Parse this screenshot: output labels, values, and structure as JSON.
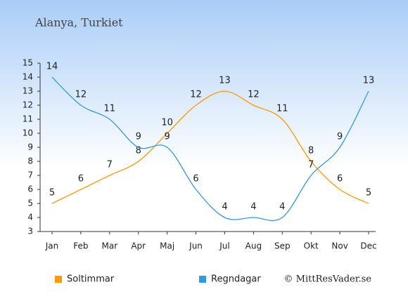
{
  "chart_data": {
    "type": "line",
    "title": "Alanya, Turkiet",
    "categories": [
      "Jan",
      "Feb",
      "Mar",
      "Apr",
      "Maj",
      "Jun",
      "Jul",
      "Aug",
      "Sep",
      "Okt",
      "Nov",
      "Dec"
    ],
    "series": [
      {
        "name": "Soltimmar",
        "color": "#ff9900",
        "values": [
          5,
          6,
          7,
          8,
          10,
          12,
          13,
          12,
          11,
          8,
          6,
          5
        ]
      },
      {
        "name": "Regndagar",
        "color": "#3399e6",
        "values": [
          14,
          12,
          11,
          9,
          9,
          6,
          4,
          4,
          4,
          7,
          9,
          13
        ]
      }
    ],
    "ylim": [
      3,
      15
    ],
    "yticks": [
      3,
      4,
      5,
      6,
      7,
      8,
      9,
      10,
      11,
      12,
      13,
      14,
      15
    ],
    "grid": false,
    "legend": "bottom-left",
    "credit": "© MittResVader.se"
  }
}
